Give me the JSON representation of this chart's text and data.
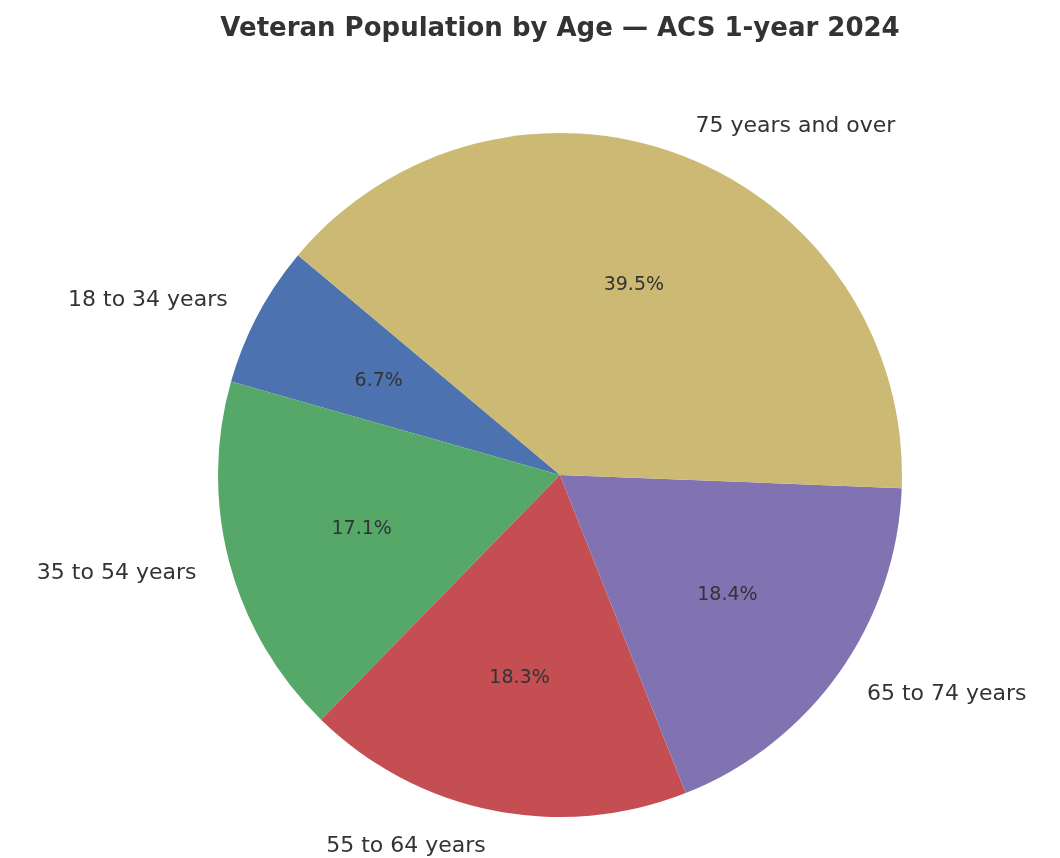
{
  "chart_data": {
    "type": "pie",
    "title": "Veteran Population by Age — ACS 1-year 2024",
    "categories": [
      "18 to 34 years",
      "35 to 54 years",
      "55 to 64 years",
      "65 to 74 years",
      "75 years and over"
    ],
    "values": [
      6.7,
      17.1,
      18.3,
      18.4,
      39.5
    ],
    "value_labels": [
      "6.7%",
      "17.1%",
      "18.3%",
      "18.4%",
      "39.5%"
    ],
    "colors": [
      "#4c72b0",
      "#55a868",
      "#c44e52",
      "#8172b2",
      "#ccb974"
    ]
  }
}
